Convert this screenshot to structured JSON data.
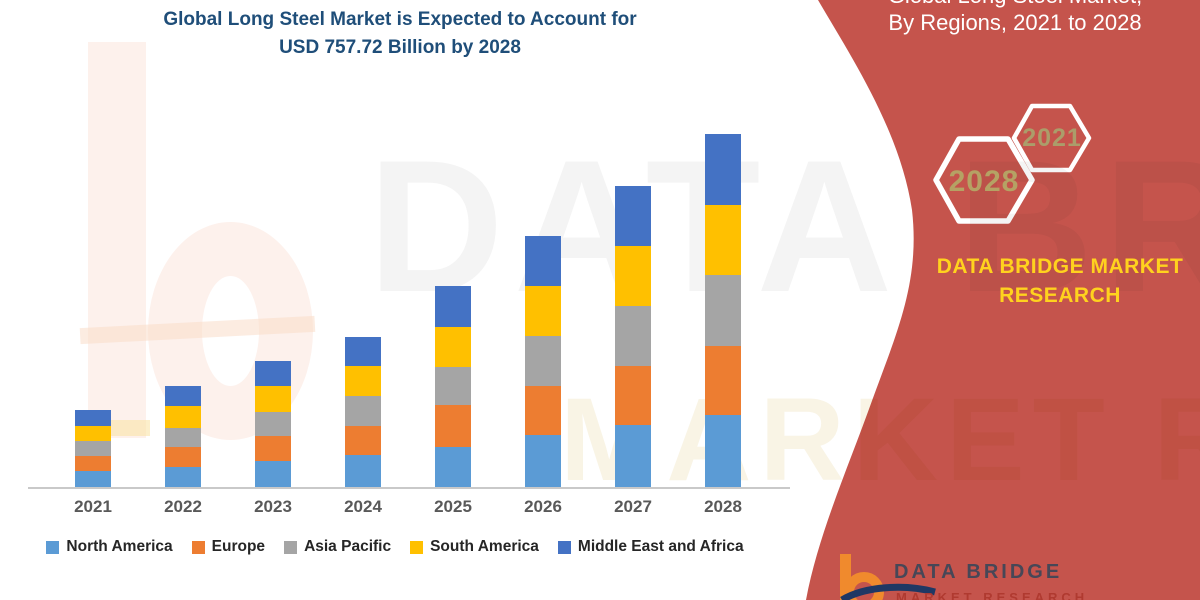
{
  "page": {
    "background": "#ffffff"
  },
  "chart": {
    "title_line1": "Global Long Steel Market is Expected to Account for",
    "title_line2": "USD 757.72 Billion by 2028",
    "title_color": "#1f4e79"
  },
  "chart_data": {
    "type": "bar",
    "stacked": true,
    "title": "Global Long Steel Market is Expected to Account for USD 757.72 Billion by 2028",
    "unit": "USD Billion",
    "categories": [
      "2021",
      "2022",
      "2023",
      "2024",
      "2025",
      "2026",
      "2027",
      "2028"
    ],
    "series": [
      {
        "name": "North America",
        "color": "#5b9bd5",
        "values": [
          35,
          43,
          55,
          69,
          86,
          111,
          133,
          155
        ]
      },
      {
        "name": "Europe",
        "color": "#ed7d31",
        "values": [
          31,
          44,
          54,
          62,
          90,
          105,
          127,
          147
        ]
      },
      {
        "name": "Asia Pacific",
        "color": "#a5a5a5",
        "values": [
          34,
          40,
          52,
          64,
          81,
          109,
          129,
          154
        ]
      },
      {
        "name": "South America",
        "color": "#ffc000",
        "values": [
          32,
          48,
          55,
          64,
          86,
          106,
          129,
          150
        ]
      },
      {
        "name": "Middle East and Africa",
        "color": "#4472c4",
        "values": [
          34,
          43,
          54,
          64,
          89,
          107,
          128,
          151.72
        ]
      }
    ],
    "totals_usd_billion": [
      166,
      218,
      270,
      323,
      432,
      538,
      646,
      757.72
    ],
    "ylim": [
      0,
      800
    ],
    "grid": false,
    "legend_position": "bottom",
    "xlabel": "",
    "ylabel": ""
  },
  "banner": {
    "color": "#c5544c",
    "title_line1_clipped": "Global Long Steel Market,",
    "title_line2": "By Regions, 2021 to 2028",
    "hexagons": [
      {
        "year": "2028"
      },
      {
        "year": "2021"
      }
    ],
    "hex_text_color": "#b5a264",
    "brand_line1": "DATA BRIDGE MARKET",
    "brand_line2": "RESEARCH",
    "brand_color": "#ffd21e",
    "logo": {
      "text": "DATA BRIDGE",
      "subtext": "MARKET RESEARCH"
    }
  },
  "watermark": {
    "line1": "DATA BRIDGE",
    "line2": "MARKET RESEARCH"
  }
}
